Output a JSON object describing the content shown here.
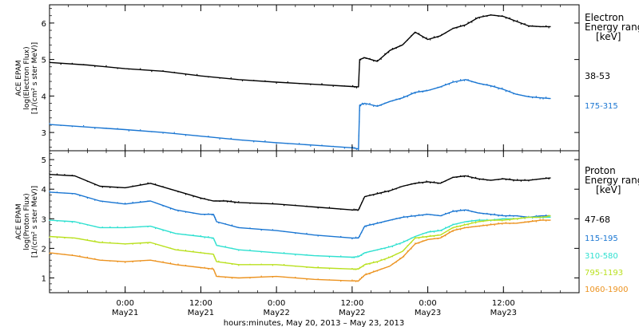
{
  "chart_data": [
    {
      "type": "line",
      "panel": "electron",
      "ylabel_lines": [
        "ACE EPAM",
        "log(Electron Flux)",
        "[1/(cm² s ster MeV)]"
      ],
      "ylim": [
        2.5,
        6.5
      ],
      "yticks": [
        "3",
        "4",
        "5",
        "6"
      ],
      "xlim_hours": [
        -12,
        72
      ],
      "legend_title": [
        "Electron",
        "Energy ranges",
        "[keV]"
      ],
      "series": [
        {
          "name": "38-53",
          "color": "#000000",
          "points": [
            [
              -12,
              4.92
            ],
            [
              -6,
              4.85
            ],
            [
              0,
              4.75
            ],
            [
              6,
              4.68
            ],
            [
              12,
              4.55
            ],
            [
              18,
              4.45
            ],
            [
              24,
              4.38
            ],
            [
              30,
              4.32
            ],
            [
              36,
              4.26
            ],
            [
              37,
              4.25
            ],
            [
              37.2,
              5.0
            ],
            [
              38,
              5.05
            ],
            [
              40,
              4.95
            ],
            [
              42,
              5.25
            ],
            [
              44,
              5.4
            ],
            [
              46,
              5.75
            ],
            [
              48,
              5.55
            ],
            [
              50,
              5.65
            ],
            [
              52,
              5.85
            ],
            [
              54,
              5.95
            ],
            [
              56,
              6.15
            ],
            [
              58,
              6.22
            ],
            [
              60,
              6.18
            ],
            [
              62,
              6.05
            ],
            [
              64,
              5.92
            ],
            [
              66,
              5.9
            ],
            [
              67.5,
              5.9
            ]
          ]
        },
        {
          "name": "175-315",
          "color": "#1a76d2",
          "points": [
            [
              -12,
              3.22
            ],
            [
              -6,
              3.15
            ],
            [
              0,
              3.08
            ],
            [
              6,
              3.0
            ],
            [
              12,
              2.9
            ],
            [
              18,
              2.8
            ],
            [
              24,
              2.72
            ],
            [
              30,
              2.65
            ],
            [
              36,
              2.58
            ],
            [
              37,
              2.55
            ],
            [
              37.2,
              3.75
            ],
            [
              38,
              3.8
            ],
            [
              40,
              3.72
            ],
            [
              42,
              3.85
            ],
            [
              44,
              3.95
            ],
            [
              46,
              4.1
            ],
            [
              48,
              4.15
            ],
            [
              50,
              4.25
            ],
            [
              52,
              4.38
            ],
            [
              54,
              4.45
            ],
            [
              56,
              4.35
            ],
            [
              58,
              4.28
            ],
            [
              60,
              4.18
            ],
            [
              62,
              4.05
            ],
            [
              64,
              3.98
            ],
            [
              66,
              3.95
            ],
            [
              67.5,
              3.93
            ]
          ]
        }
      ]
    },
    {
      "type": "line",
      "panel": "proton",
      "ylabel_lines": [
        "ACE EPAM",
        "log(Proton Flux)",
        "[1/(cm² s ster MeV)]"
      ],
      "ylim": [
        0.5,
        5.3
      ],
      "yticks": [
        "1",
        "2",
        "3",
        "4",
        "5"
      ],
      "xlim_hours": [
        -12,
        72
      ],
      "xlabel": "hours:minutes, May 20, 2013 – May 23, 2013",
      "x_ticks": [
        {
          "hour": 0,
          "time": "0:00",
          "date": "May21"
        },
        {
          "hour": 12,
          "time": "12:00",
          "date": "May21"
        },
        {
          "hour": 24,
          "time": "0:00",
          "date": "May22"
        },
        {
          "hour": 36,
          "time": "12:00",
          "date": "May22"
        },
        {
          "hour": 48,
          "time": "0:00",
          "date": "May23"
        },
        {
          "hour": 60,
          "time": "12:00",
          "date": "May23"
        }
      ],
      "legend_title": [
        "Proton",
        "Energy ranges",
        "[keV]"
      ],
      "series": [
        {
          "name": "47-68",
          "color": "#000000",
          "points": [
            [
              -12,
              4.5
            ],
            [
              -8,
              4.45
            ],
            [
              -4,
              4.1
            ],
            [
              0,
              4.05
            ],
            [
              4,
              4.2
            ],
            [
              8,
              3.95
            ],
            [
              12,
              3.7
            ],
            [
              14,
              3.6
            ],
            [
              16,
              3.6
            ],
            [
              18,
              3.55
            ],
            [
              24,
              3.5
            ],
            [
              30,
              3.4
            ],
            [
              36,
              3.3
            ],
            [
              37,
              3.3
            ],
            [
              38,
              3.75
            ],
            [
              40,
              3.85
            ],
            [
              42,
              3.95
            ],
            [
              44,
              4.1
            ],
            [
              46,
              4.2
            ],
            [
              48,
              4.25
            ],
            [
              50,
              4.2
            ],
            [
              52,
              4.4
            ],
            [
              54,
              4.45
            ],
            [
              56,
              4.35
            ],
            [
              58,
              4.3
            ],
            [
              60,
              4.35
            ],
            [
              62,
              4.3
            ],
            [
              64,
              4.3
            ],
            [
              66,
              4.35
            ],
            [
              67.5,
              4.38
            ]
          ]
        },
        {
          "name": "115-195",
          "color": "#1a76d2",
          "points": [
            [
              -12,
              3.9
            ],
            [
              -8,
              3.85
            ],
            [
              -4,
              3.6
            ],
            [
              0,
              3.5
            ],
            [
              4,
              3.6
            ],
            [
              8,
              3.3
            ],
            [
              12,
              3.15
            ],
            [
              14,
              3.15
            ],
            [
              14.5,
              2.9
            ],
            [
              18,
              2.7
            ],
            [
              24,
              2.6
            ],
            [
              30,
              2.45
            ],
            [
              36,
              2.35
            ],
            [
              37,
              2.35
            ],
            [
              38,
              2.75
            ],
            [
              40,
              2.85
            ],
            [
              42,
              2.95
            ],
            [
              44,
              3.05
            ],
            [
              46,
              3.1
            ],
            [
              48,
              3.15
            ],
            [
              50,
              3.1
            ],
            [
              52,
              3.25
            ],
            [
              54,
              3.3
            ],
            [
              56,
              3.2
            ],
            [
              58,
              3.15
            ],
            [
              60,
              3.1
            ],
            [
              62,
              3.1
            ],
            [
              64,
              3.05
            ],
            [
              66,
              3.1
            ],
            [
              67.5,
              3.1
            ]
          ]
        },
        {
          "name": "310-580",
          "color": "#2fe0d0",
          "points": [
            [
              -12,
              2.95
            ],
            [
              -8,
              2.9
            ],
            [
              -4,
              2.7
            ],
            [
              0,
              2.7
            ],
            [
              4,
              2.75
            ],
            [
              8,
              2.5
            ],
            [
              12,
              2.4
            ],
            [
              14,
              2.35
            ],
            [
              14.5,
              2.1
            ],
            [
              18,
              1.95
            ],
            [
              24,
              1.85
            ],
            [
              30,
              1.75
            ],
            [
              36,
              1.7
            ],
            [
              37,
              1.72
            ],
            [
              38,
              1.85
            ],
            [
              40,
              1.95
            ],
            [
              42,
              2.05
            ],
            [
              44,
              2.2
            ],
            [
              46,
              2.4
            ],
            [
              48,
              2.55
            ],
            [
              50,
              2.6
            ],
            [
              52,
              2.8
            ],
            [
              54,
              2.9
            ],
            [
              56,
              2.95
            ],
            [
              58,
              2.95
            ],
            [
              60,
              3.0
            ],
            [
              62,
              3.0
            ],
            [
              64,
              3.05
            ],
            [
              66,
              3.05
            ],
            [
              67.5,
              3.05
            ]
          ]
        },
        {
          "name": "795-1193",
          "color": "#b9e01e",
          "points": [
            [
              -12,
              2.4
            ],
            [
              -8,
              2.35
            ],
            [
              -4,
              2.2
            ],
            [
              0,
              2.15
            ],
            [
              4,
              2.2
            ],
            [
              8,
              1.95
            ],
            [
              12,
              1.85
            ],
            [
              14,
              1.8
            ],
            [
              14.5,
              1.55
            ],
            [
              18,
              1.45
            ],
            [
              24,
              1.45
            ],
            [
              30,
              1.35
            ],
            [
              36,
              1.3
            ],
            [
              37,
              1.3
            ],
            [
              38,
              1.45
            ],
            [
              40,
              1.55
            ],
            [
              42,
              1.7
            ],
            [
              44,
              1.9
            ],
            [
              46,
              2.35
            ],
            [
              48,
              2.4
            ],
            [
              50,
              2.45
            ],
            [
              52,
              2.7
            ],
            [
              54,
              2.8
            ],
            [
              56,
              2.9
            ],
            [
              58,
              2.95
            ],
            [
              60,
              2.95
            ],
            [
              62,
              3.0
            ],
            [
              64,
              3.05
            ],
            [
              66,
              3.05
            ],
            [
              67.5,
              3.1
            ]
          ]
        },
        {
          "name": "1060-1900",
          "color": "#ec9320",
          "points": [
            [
              -12,
              1.85
            ],
            [
              -8,
              1.75
            ],
            [
              -4,
              1.6
            ],
            [
              0,
              1.55
            ],
            [
              4,
              1.6
            ],
            [
              8,
              1.45
            ],
            [
              12,
              1.35
            ],
            [
              14,
              1.3
            ],
            [
              14.5,
              1.05
            ],
            [
              18,
              1.0
            ],
            [
              24,
              1.05
            ],
            [
              30,
              0.95
            ],
            [
              36,
              0.9
            ],
            [
              37,
              0.9
            ],
            [
              38,
              1.1
            ],
            [
              40,
              1.25
            ],
            [
              42,
              1.4
            ],
            [
              44,
              1.7
            ],
            [
              46,
              2.15
            ],
            [
              48,
              2.3
            ],
            [
              50,
              2.35
            ],
            [
              52,
              2.6
            ],
            [
              54,
              2.7
            ],
            [
              56,
              2.75
            ],
            [
              58,
              2.8
            ],
            [
              60,
              2.85
            ],
            [
              62,
              2.85
            ],
            [
              64,
              2.9
            ],
            [
              66,
              2.95
            ],
            [
              67.5,
              2.95
            ]
          ]
        }
      ]
    }
  ]
}
